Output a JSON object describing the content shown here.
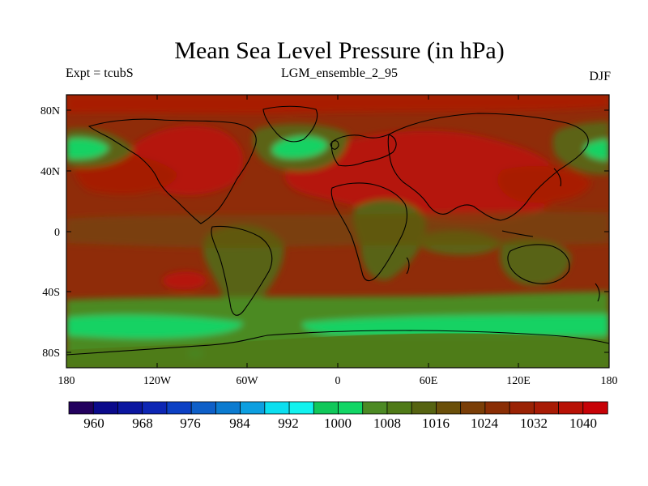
{
  "title": "Mean Sea Level Pressure (in hPa)",
  "experiment_label": "Expt = tcubS",
  "run_label": "LGM_ensemble_2_95",
  "season_label": "DJF",
  "axes": {
    "lat_ticks": [
      "80N",
      "40N",
      "0",
      "40S",
      "80S"
    ],
    "lon_ticks": [
      "180",
      "120W",
      "60W",
      "0",
      "60E",
      "120E",
      "180"
    ]
  },
  "colorbar": {
    "labels": [
      "960",
      "968",
      "976",
      "984",
      "992",
      "1000",
      "1008",
      "1016",
      "1024",
      "1032",
      "1040"
    ],
    "colors": [
      "#23005e",
      "#0b0a8b",
      "#0b16a0",
      "#0d26b4",
      "#0c40c4",
      "#0e5fc8",
      "#0b7bd0",
      "#0d9fe0",
      "#0bdff0",
      "#12f2ef",
      "#10c85a",
      "#12d665",
      "#4c8a24",
      "#4f7a17",
      "#566311",
      "#6a4f0a",
      "#7a3e07",
      "#8a2e05",
      "#9a2204",
      "#a81b05",
      "#b81105",
      "#c70207"
    ]
  },
  "colors": {
    "high_pressure": "#b51208",
    "mid_pressure": "#8c2b0a",
    "low_mid_pressure": "#5b6312",
    "low_pressure": "#12d264",
    "coastline": "#000000"
  }
}
